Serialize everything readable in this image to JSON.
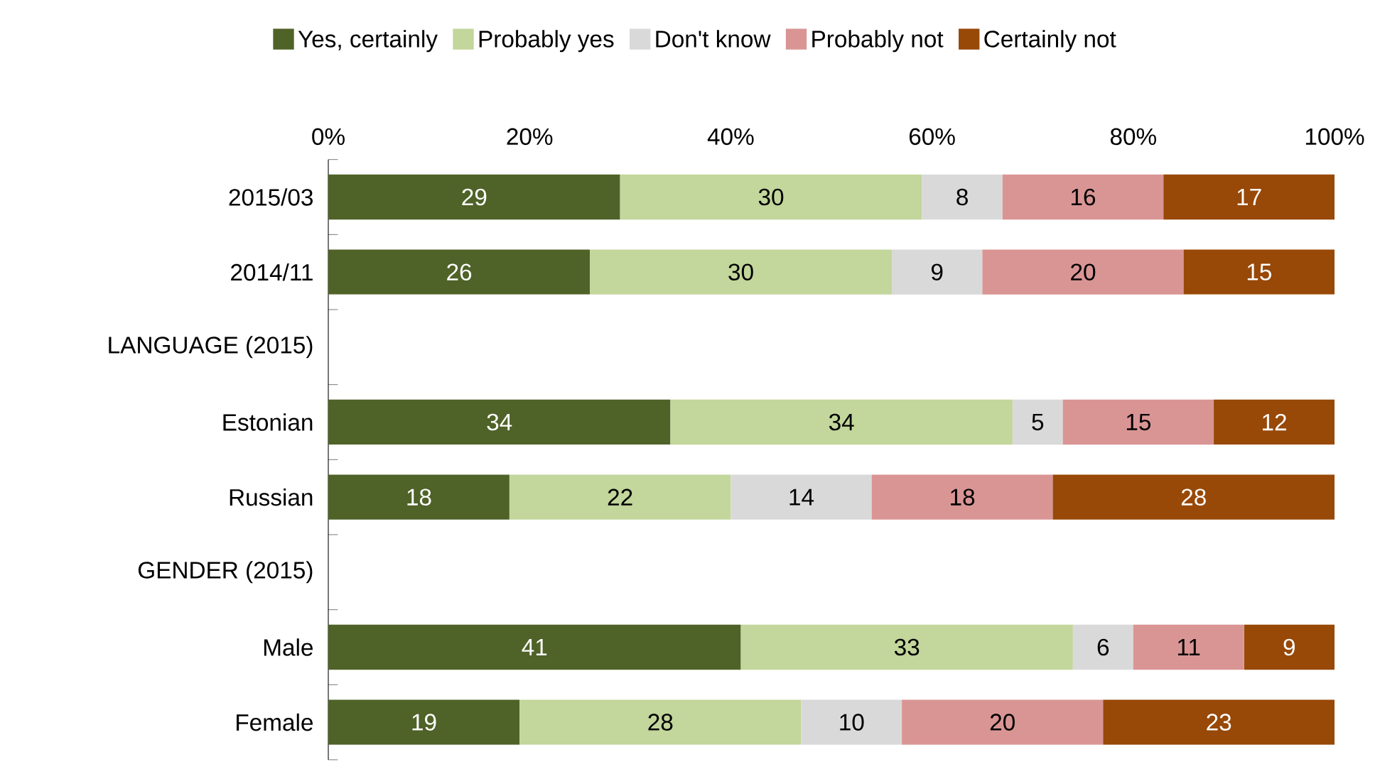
{
  "chart_data": {
    "type": "bar",
    "orientation": "horizontal",
    "stacked": true,
    "data_labels": true,
    "legend": "top",
    "grid": false,
    "categories": [
      "2015/03",
      "2014/11",
      "LANGUAGE (2015)",
      "Estonian",
      "Russian",
      "GENDER (2015)",
      "Male",
      "Female"
    ],
    "xlim": [
      0,
      100
    ],
    "xticks": [
      {
        "value": 0,
        "label": "0%"
      },
      {
        "value": 20,
        "label": "20%"
      },
      {
        "value": 40,
        "label": "40%"
      },
      {
        "value": 60,
        "label": "60%"
      },
      {
        "value": 80,
        "label": "80%"
      },
      {
        "value": 100,
        "label": "100%"
      }
    ],
    "series": [
      {
        "name": "Yes, certainly",
        "color": "#4f6228",
        "values": [
          29,
          26,
          null,
          34,
          18,
          null,
          41,
          19
        ]
      },
      {
        "name": "Probably yes",
        "color": "#c3d69b",
        "values": [
          30,
          30,
          null,
          34,
          22,
          null,
          33,
          28
        ]
      },
      {
        "name": "Don't know",
        "color": "#d9d9d9",
        "values": [
          8,
          9,
          null,
          5,
          14,
          null,
          6,
          10
        ]
      },
      {
        "name": "Probably not",
        "color": "#d99594",
        "values": [
          16,
          20,
          null,
          15,
          18,
          null,
          11,
          20
        ]
      },
      {
        "name": "Certainly not",
        "color": "#984807",
        "values": [
          17,
          15,
          null,
          12,
          28,
          null,
          9,
          23
        ]
      }
    ]
  }
}
